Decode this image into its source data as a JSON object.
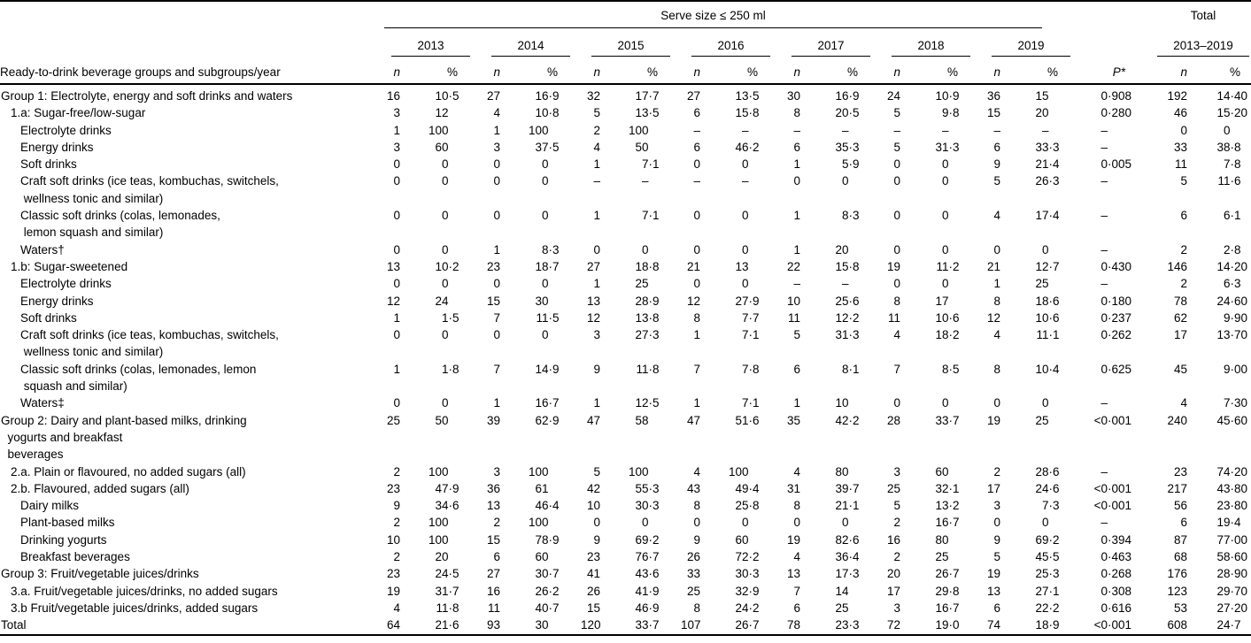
{
  "table": {
    "serve_size_header": "Serve size ≤ 250 ml",
    "total_header_line1": "Total",
    "total_header_line2": "2013–2019",
    "row_header": "Ready-to-drink beverage groups and subgroups/year",
    "n_label": "n",
    "pct_label": "%",
    "p_label": "P*",
    "years": [
      "2013",
      "2014",
      "2015",
      "2016",
      "2017",
      "2018",
      "2019"
    ],
    "rows": [
      {
        "label": "Group 1: Electrolyte, energy and soft drinks and waters",
        "indent": 0,
        "values": [
          "16",
          "10·5",
          "27",
          "16·9",
          "32",
          "17·7",
          "27",
          "13·5",
          "30",
          "16·9",
          "24",
          "10·9",
          "36",
          "15",
          "0·908",
          "192",
          "14·40"
        ]
      },
      {
        "label": "1.a: Sugar-free/low-sugar",
        "indent": 1,
        "values": [
          "3",
          "12",
          "4",
          "10·8",
          "5",
          "13·5",
          "6",
          "15·8",
          "8",
          "20·5",
          "5",
          "9·8",
          "15",
          "20",
          "0·280",
          "46",
          "15·20"
        ]
      },
      {
        "label": "Electrolyte drinks",
        "indent": 2,
        "values": [
          "1",
          "100",
          "1",
          "100",
          "2",
          "100",
          "–",
          "–",
          "–",
          "–",
          "–",
          "–",
          "–",
          "–",
          "–",
          "0",
          "0"
        ]
      },
      {
        "label": "Energy drinks",
        "indent": 2,
        "values": [
          "3",
          "60",
          "3",
          "37·5",
          "4",
          "50",
          "6",
          "46·2",
          "6",
          "35·3",
          "5",
          "31·3",
          "6",
          "33·3",
          "–",
          "33",
          "38·8"
        ]
      },
      {
        "label": "Soft drinks",
        "indent": 2,
        "values": [
          "0",
          "0",
          "0",
          "0",
          "1",
          "7·1",
          "0",
          "0",
          "1",
          "5·9",
          "0",
          "0",
          "9",
          "21·4",
          "0·005",
          "11",
          "7·8"
        ]
      },
      {
        "label": "Craft soft drinks (ice teas, kombuchas, switchels,\n wellness tonic and similar)",
        "indent": 2,
        "values": [
          "0",
          "0",
          "0",
          "0",
          "–",
          "–",
          "–",
          "–",
          "0",
          "0",
          "0",
          "0",
          "5",
          "26·3",
          "–",
          "5",
          "11·6"
        ]
      },
      {
        "label": "Classic soft drinks (colas, lemonades,\n lemon squash and similar)",
        "indent": 2,
        "values": [
          "0",
          "0",
          "0",
          "0",
          "1",
          "7·1",
          "0",
          "0",
          "1",
          "8·3",
          "0",
          "0",
          "4",
          "17·4",
          "–",
          "6",
          "6·1"
        ]
      },
      {
        "label": "Waters†",
        "indent": 2,
        "values": [
          "0",
          "0",
          "1",
          "8·3",
          "0",
          "0",
          "0",
          "0",
          "1",
          "20",
          "0",
          "0",
          "0",
          "0",
          "–",
          "2",
          "2·8"
        ]
      },
      {
        "label": "1.b: Sugar-sweetened",
        "indent": 1,
        "values": [
          "13",
          "10·2",
          "23",
          "18·7",
          "27",
          "18·8",
          "21",
          "13",
          "22",
          "15·8",
          "19",
          "11·2",
          "21",
          "12·7",
          "0·430",
          "146",
          "14·20"
        ]
      },
      {
        "label": "Electrolyte drinks",
        "indent": 2,
        "values": [
          "0",
          "0",
          "0",
          "0",
          "1",
          "25",
          "0",
          "0",
          "–",
          "–",
          "0",
          "0",
          "1",
          "25",
          "–",
          "2",
          "6·3"
        ]
      },
      {
        "label": "Energy drinks",
        "indent": 2,
        "values": [
          "12",
          "24",
          "15",
          "30",
          "13",
          "28·9",
          "12",
          "27·9",
          "10",
          "25·6",
          "8",
          "17",
          "8",
          "18·6",
          "0·180",
          "78",
          "24·60"
        ]
      },
      {
        "label": "Soft drinks",
        "indent": 2,
        "values": [
          "1",
          "1·5",
          "7",
          "11·5",
          "12",
          "13·8",
          "8",
          "7·7",
          "11",
          "12·2",
          "11",
          "10·6",
          "12",
          "10·6",
          "0·237",
          "62",
          "9·90"
        ]
      },
      {
        "label": "Craft soft drinks (ice teas, kombuchas, switchels,\n wellness tonic and similar)",
        "indent": 2,
        "values": [
          "0",
          "0",
          "0",
          "0",
          "3",
          "27·3",
          "1",
          "7·1",
          "5",
          "31·3",
          "4",
          "18·2",
          "4",
          "11·1",
          "0·262",
          "17",
          "13·70"
        ]
      },
      {
        "label": "Classic soft drinks (colas, lemonades, lemon\n squash and similar)",
        "indent": 2,
        "values": [
          "1",
          "1·8",
          "7",
          "14·9",
          "9",
          "11·8",
          "7",
          "7·8",
          "6",
          "8·1",
          "7",
          "8·5",
          "8",
          "10·4",
          "0·625",
          "45",
          "9·00"
        ]
      },
      {
        "label": "Waters‡",
        "indent": 2,
        "values": [
          "0",
          "0",
          "1",
          "16·7",
          "1",
          "12·5",
          "1",
          "7·1",
          "1",
          "10",
          "0",
          "0",
          "0",
          "0",
          "–",
          "4",
          "7·30"
        ]
      },
      {
        "label": "Group 2: Dairy and plant-based milks, drinking\n  yogurts and breakfast\n  beverages",
        "indent": 0,
        "values": [
          "25",
          "50",
          "39",
          "62·9",
          "47",
          "58",
          "47",
          "51·6",
          "35",
          "42·2",
          "28",
          "33·7",
          "19",
          "25",
          "<0·001",
          "240",
          "45·60"
        ]
      },
      {
        "label": "2.a. Plain or flavoured, no added sugars (all)",
        "indent": 1,
        "values": [
          "2",
          "100",
          "3",
          "100",
          "5",
          "100",
          "4",
          "100",
          "4",
          "80",
          "3",
          "60",
          "2",
          "28·6",
          "–",
          "23",
          "74·20"
        ]
      },
      {
        "label": "2.b. Flavoured, added sugars (all)",
        "indent": 1,
        "values": [
          "23",
          "47·9",
          "36",
          "61",
          "42",
          "55·3",
          "43",
          "49·4",
          "31",
          "39·7",
          "25",
          "32·1",
          "17",
          "24·6",
          "<0·001",
          "217",
          "43·80"
        ]
      },
      {
        "label": "Dairy milks",
        "indent": 2,
        "values": [
          "9",
          "34·6",
          "13",
          "46·4",
          "10",
          "30·3",
          "8",
          "25·8",
          "8",
          "21·1",
          "5",
          "13·2",
          "3",
          "7·3",
          "<0·001",
          "56",
          "23·80"
        ]
      },
      {
        "label": "Plant-based milks",
        "indent": 2,
        "values": [
          "2",
          "100",
          "2",
          "100",
          "0",
          "0",
          "0",
          "0",
          "0",
          "0",
          "2",
          "16·7",
          "0",
          "0",
          "–",
          "6",
          "19·4"
        ]
      },
      {
        "label": "Drinking yogurts",
        "indent": 2,
        "values": [
          "10",
          "100",
          "15",
          "78·9",
          "9",
          "69·2",
          "9",
          "60",
          "19",
          "82·6",
          "16",
          "80",
          "9",
          "69·2",
          "0·394",
          "87",
          "77·00"
        ]
      },
      {
        "label": "Breakfast beverages",
        "indent": 2,
        "values": [
          "2",
          "20",
          "6",
          "60",
          "23",
          "76·7",
          "26",
          "72·2",
          "4",
          "36·4",
          "2",
          "25",
          "5",
          "45·5",
          "0·463",
          "68",
          "58·60"
        ]
      },
      {
        "label": "Group 3: Fruit/vegetable juices/drinks",
        "indent": 0,
        "values": [
          "23",
          "24·5",
          "27",
          "30·7",
          "41",
          "43·6",
          "33",
          "30·3",
          "13",
          "17·3",
          "20",
          "26·7",
          "19",
          "25·3",
          "0·268",
          "176",
          "28·90"
        ]
      },
      {
        "label": "3.a. Fruit/vegetable juices/drinks, no added sugars",
        "indent": 1,
        "values": [
          "19",
          "31·7",
          "16",
          "26·2",
          "26",
          "41·9",
          "25",
          "32·9",
          "7",
          "14",
          "17",
          "29·8",
          "13",
          "27·1",
          "0·308",
          "123",
          "29·70"
        ]
      },
      {
        "label": "3.b Fruit/vegetable juices/drinks, added sugars",
        "indent": 1,
        "values": [
          "4",
          "11·8",
          "11",
          "40·7",
          "15",
          "46·9",
          "8",
          "24·2",
          "6",
          "25",
          "3",
          "16·7",
          "6",
          "22·2",
          "0·616",
          "53",
          "27·20"
        ]
      },
      {
        "label": "Total",
        "indent": 0,
        "values": [
          "64",
          "21·6",
          "93",
          "30",
          "120",
          "33·7",
          "107",
          "26·7",
          "78",
          "23·3",
          "72",
          "19·0",
          "74",
          "18·9",
          "<0·001",
          "608",
          "24·7"
        ]
      }
    ]
  }
}
